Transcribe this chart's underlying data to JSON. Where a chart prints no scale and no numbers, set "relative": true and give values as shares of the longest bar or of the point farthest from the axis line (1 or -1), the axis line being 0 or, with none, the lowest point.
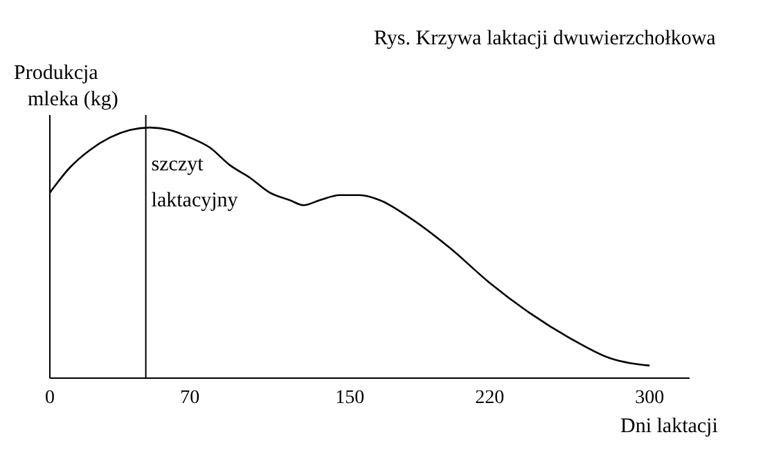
{
  "chart_data": {
    "type": "line",
    "title": "Rys. Krzywa laktacji dwuwierzchołkowa",
    "xlabel": "Dni laktacji",
    "ylabel": "Produkcja mleka (kg)",
    "relative": true,
    "x": [
      0,
      10,
      20,
      30,
      40,
      50,
      60,
      70,
      80,
      90,
      100,
      110,
      120,
      127,
      135,
      145,
      155,
      165,
      180,
      200,
      220,
      240,
      260,
      280,
      300
    ],
    "series": [
      {
        "color": "#000000",
        "values": [
          0.74,
          0.84,
          0.91,
          0.96,
          0.99,
          1,
          0.99,
          0.96,
          0.92,
          0.85,
          0.8,
          0.74,
          0.71,
          0.69,
          0.71,
          0.73,
          0.73,
          0.71,
          0.64,
          0.52,
          0.38,
          0.26,
          0.16,
          0.08,
          0.05
        ]
      }
    ],
    "xlim": [
      0,
      320
    ],
    "xticks": [
      0,
      70,
      150,
      220,
      300
    ],
    "ref_lines": [
      {
        "axis": "x",
        "value": 48,
        "label": "szczyt laktacyjny",
        "color": "#000000"
      }
    ],
    "grid": false,
    "legend": false,
    "marker": "none",
    "line_style": "solid"
  }
}
